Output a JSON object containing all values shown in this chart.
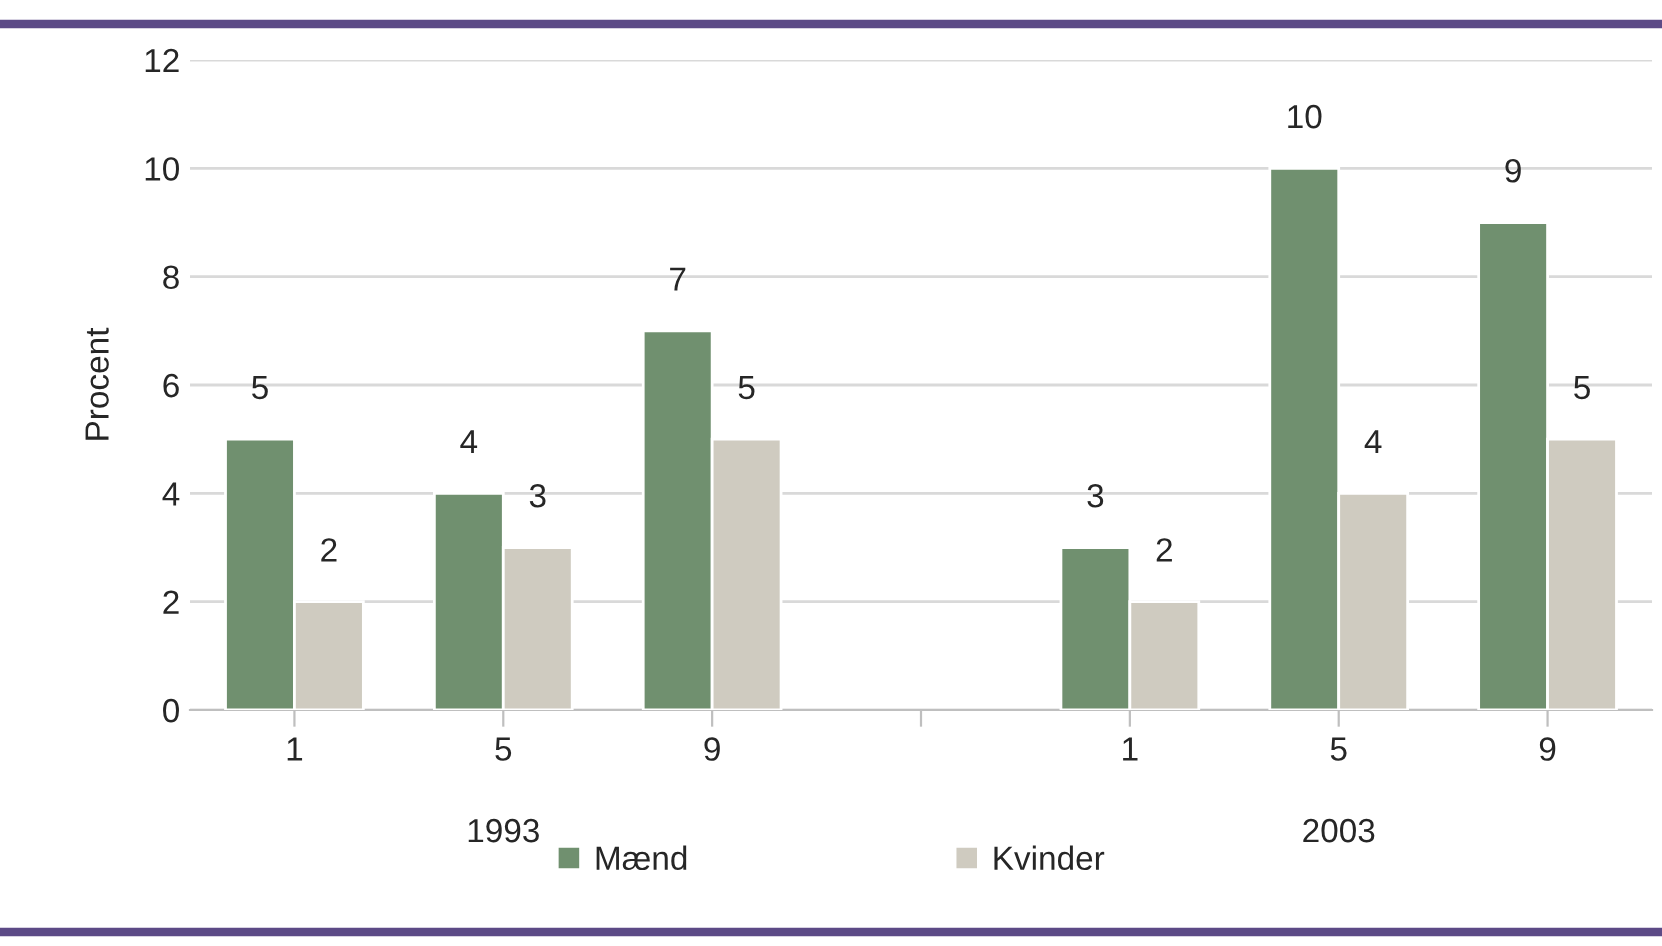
{
  "chart_data": {
    "type": "bar",
    "categories": [
      "1",
      "5",
      "9",
      null,
      "1",
      "5",
      "9"
    ],
    "series": [
      {
        "name": "Mænd",
        "color": "#70906f",
        "values": [
          5,
          4,
          7,
          null,
          3,
          10,
          9
        ]
      },
      {
        "name": "Kvinder",
        "color": "#cfcbc0",
        "values": [
          2,
          3,
          5,
          null,
          2,
          4,
          5
        ]
      }
    ],
    "ylabel": "Procent",
    "ylim": [
      0,
      12
    ],
    "yticks": [
      0,
      2,
      4,
      6,
      8,
      10,
      12
    ],
    "grid": "y",
    "legend": "bottom",
    "data_labels": true,
    "annotations": [
      "1993",
      "2003"
    ]
  }
}
